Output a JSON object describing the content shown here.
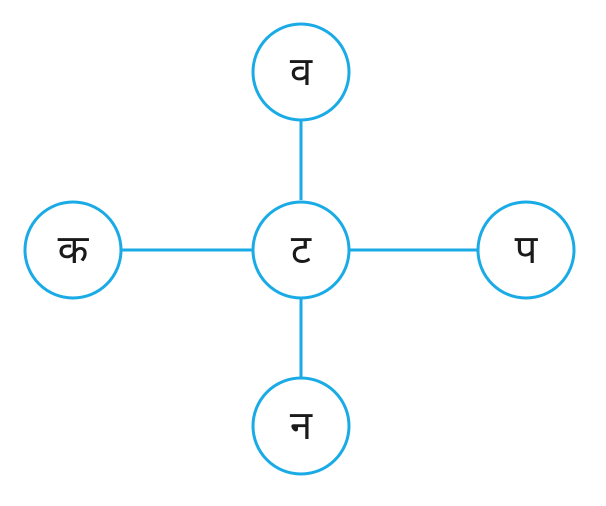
{
  "colors": {
    "stroke": "#1aabe6",
    "text": "#1a1a1a",
    "background": "#ffffff"
  },
  "nodes": {
    "center": "ट",
    "top": "व",
    "left": "क",
    "right": "प",
    "bottom": "न"
  }
}
